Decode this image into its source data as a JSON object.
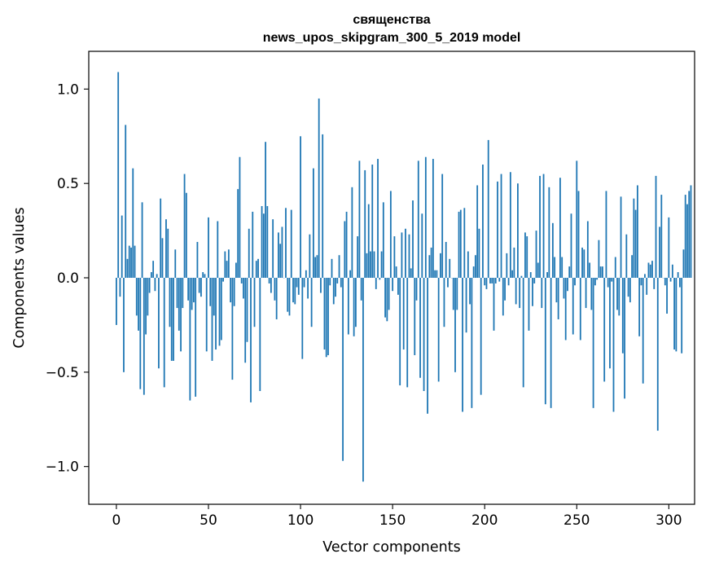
{
  "chart_data": {
    "type": "bar",
    "title_line1": "священства",
    "title_line2": "news_upos_skipgram_300_5_2019 model",
    "xlabel": "Vector components",
    "ylabel": "Components values",
    "xlim": [
      -15,
      314
    ],
    "ylim": [
      -1.2,
      1.2
    ],
    "xticks": [
      0,
      50,
      100,
      150,
      200,
      250,
      300
    ],
    "xtick_labels": [
      "0",
      "50",
      "100",
      "150",
      "200",
      "250",
      "300"
    ],
    "yticks": [
      -1.0,
      -0.5,
      0.0,
      0.5,
      1.0
    ],
    "ytick_labels": [
      "−1.0",
      "−0.5",
      "0.0",
      "0.5",
      "1.0"
    ],
    "grid": false,
    "bar_color": "#1f77b4",
    "values": [
      -0.25,
      1.09,
      -0.1,
      0.33,
      -0.5,
      0.81,
      0.1,
      0.17,
      0.16,
      0.58,
      0.17,
      -0.2,
      -0.28,
      -0.59,
      0.4,
      -0.62,
      -0.3,
      -0.2,
      -0.08,
      0.03,
      0.09,
      -0.07,
      0.02,
      -0.48,
      0.42,
      0.21,
      -0.58,
      0.31,
      0.26,
      -0.26,
      -0.44,
      -0.44,
      0.15,
      -0.16,
      -0.28,
      -0.39,
      -0.16,
      0.55,
      0.45,
      -0.12,
      -0.65,
      -0.17,
      -0.13,
      -0.63,
      0.19,
      -0.08,
      -0.1,
      0.03,
      0.02,
      -0.39,
      0.32,
      -0.15,
      -0.44,
      -0.2,
      -0.38,
      0.3,
      -0.36,
      -0.33,
      -0.02,
      0.14,
      0.09,
      0.15,
      -0.13,
      -0.54,
      -0.15,
      0.08,
      0.47,
      0.64,
      -0.03,
      -0.11,
      -0.45,
      -0.34,
      0.26,
      -0.66,
      0.35,
      -0.26,
      0.09,
      0.1,
      -0.6,
      0.38,
      0.34,
      0.72,
      0.38,
      -0.03,
      -0.08,
      0.31,
      -0.12,
      -0.22,
      0.24,
      0.18,
      0.27,
      0.0,
      0.37,
      -0.18,
      -0.2,
      0.36,
      -0.13,
      -0.14,
      -0.05,
      -0.09,
      0.75,
      -0.43,
      -0.05,
      0.04,
      -0.11,
      0.23,
      -0.26,
      0.58,
      0.11,
      0.12,
      0.95,
      -0.08,
      0.76,
      -0.38,
      -0.42,
      -0.41,
      -0.04,
      0.1,
      -0.14,
      -0.1,
      -0.03,
      0.12,
      -0.05,
      -0.97,
      0.3,
      0.35,
      -0.3,
      0.04,
      0.48,
      -0.31,
      -0.26,
      0.22,
      0.62,
      -0.12,
      -1.08,
      0.57,
      0.13,
      0.39,
      0.14,
      0.6,
      0.14,
      -0.06,
      0.63,
      -0.01,
      0.14,
      0.4,
      -0.21,
      -0.23,
      -0.17,
      0.46,
      -0.07,
      0.22,
      0.06,
      -0.09,
      -0.57,
      0.24,
      -0.38,
      0.26,
      -0.58,
      0.23,
      0.05,
      0.41,
      -0.41,
      -0.12,
      0.62,
      -0.53,
      0.34,
      -0.6,
      0.64,
      -0.72,
      0.12,
      0.16,
      0.63,
      0.04,
      0.04,
      -0.55,
      0.13,
      0.55,
      -0.26,
      0.19,
      -0.05,
      0.1,
      0.0,
      -0.17,
      -0.5,
      -0.17,
      0.35,
      0.36,
      -0.71,
      0.37,
      -0.29,
      0.14,
      -0.14,
      -0.69,
      0.06,
      0.12,
      0.49,
      0.26,
      -0.62,
      0.6,
      -0.04,
      -0.06,
      0.73,
      -0.03,
      -0.03,
      -0.28,
      -0.03,
      0.51,
      -0.02,
      0.55,
      -0.2,
      -0.12,
      0.13,
      -0.04,
      0.56,
      0.04,
      0.16,
      -0.14,
      0.5,
      -0.16,
      0.01,
      -0.58,
      0.24,
      0.22,
      -0.28,
      0.03,
      -0.15,
      -0.03,
      0.25,
      0.08,
      0.54,
      -0.16,
      0.55,
      -0.67,
      0.03,
      0.48,
      -0.69,
      0.29,
      0.11,
      -0.13,
      -0.22,
      0.53,
      0.11,
      -0.11,
      -0.33,
      -0.07,
      0.06,
      0.34,
      -0.3,
      -0.04,
      0.62,
      0.46,
      -0.33,
      0.16,
      0.15,
      -0.16,
      0.3,
      0.08,
      -0.17,
      -0.69,
      -0.04,
      -0.01,
      0.2,
      0.06,
      0.06,
      -0.55,
      0.46,
      -0.05,
      -0.48,
      -0.02,
      -0.71,
      0.11,
      -0.17,
      -0.2,
      0.43,
      -0.4,
      -0.64,
      0.23,
      -0.1,
      -0.13,
      0.12,
      0.42,
      0.36,
      0.49,
      -0.31,
      -0.04,
      -0.56,
      0.02,
      -0.09,
      0.08,
      0.07,
      0.09,
      -0.06,
      0.54,
      -0.81,
      0.27,
      0.44,
      0.0,
      -0.04,
      -0.19,
      0.32,
      -0.02,
      0.07,
      -0.38,
      -0.39,
      0.03,
      -0.05,
      -0.4,
      0.15,
      0.44,
      0.39,
      0.46,
      0.49
    ]
  }
}
